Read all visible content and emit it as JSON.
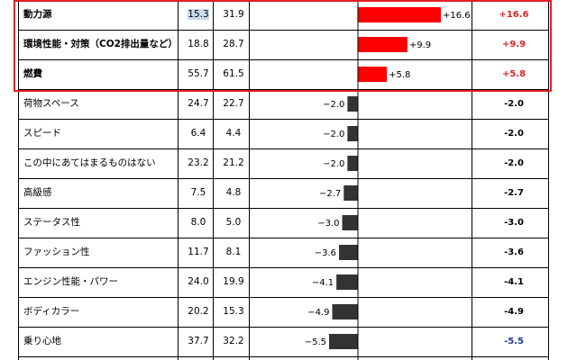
{
  "chart_data": {
    "type": "bar",
    "categories": [
      "動力源",
      "環境性能・対策（CO2排出量など）",
      "燃費",
      "荷物スペース",
      "スピード",
      "この中にあてはまるものはない",
      "高級感",
      "ステータス性",
      "ファッション性",
      "エンジン性能・パワー",
      "ボディカラー",
      "乗り心地"
    ],
    "col1_values": [
      "15.3",
      "18.8",
      "55.7",
      "24.7",
      "6.4",
      "23.2",
      "7.5",
      "8.0",
      "11.7",
      "24.0",
      "20.2",
      "37.7"
    ],
    "col2_values": [
      "31.9",
      "28.7",
      "61.5",
      "22.7",
      "4.4",
      "21.2",
      "4.8",
      "5.0",
      "8.1",
      "19.9",
      "15.3",
      "32.2"
    ],
    "values": [
      16.6,
      9.9,
      5.8,
      -2.0,
      -2.0,
      -2.0,
      -2.7,
      -3.0,
      -3.6,
      -4.1,
      -4.9,
      -5.5
    ],
    "bar_labels": [
      "+16.6",
      "+9.9",
      "+5.8",
      "−2.0",
      "−2.0",
      "−2.0",
      "−2.7",
      "−3.0",
      "−3.6",
      "−4.1",
      "−4.9",
      "−5.5"
    ],
    "diff_labels": [
      "+16.6",
      "+9.9",
      "+5.8",
      "-2.0",
      "-2.0",
      "-2.0",
      "-2.7",
      "-3.0",
      "-3.6",
      "-4.1",
      "-4.9",
      "-5.5"
    ],
    "colors": {
      "positive": "#ff0000",
      "negative": "#333333",
      "diff_positive": "#e21f26",
      "diff_negative": "#000000",
      "diff_last": "#1f3aa8",
      "highlight_border": "#e21f26",
      "cell_highlight": "#c8dbef"
    },
    "highlighted_rows": 3,
    "bold_rows": 3
  }
}
